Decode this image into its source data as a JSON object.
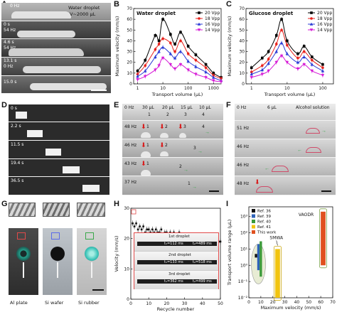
{
  "panels": {
    "A": {
      "label": "A",
      "title_line1": "Water droplet",
      "title_line2": "V~2000 μL",
      "strips": [
        {
          "freq": "0 Hz",
          "time": ""
        },
        {
          "freq": "54 Hz",
          "time": "0 s"
        },
        {
          "freq": "54 Hz",
          "time": "4.6 s"
        },
        {
          "freq": "0 Hz",
          "time": "13.1 s"
        },
        {
          "freq": "",
          "time": "15.0 s"
        }
      ]
    },
    "B": {
      "label": "B"
    },
    "C": {
      "label": "C"
    },
    "D": {
      "label": "D",
      "times": [
        "0 s",
        "2.2 s",
        "11.5 s",
        "19.4 s",
        "36.5 s"
      ]
    },
    "E": {
      "label": "E",
      "head_freq": "0 Hz",
      "volumes": [
        "30 μL",
        "20 μL",
        "15 μL",
        "10 μL"
      ],
      "rows": [
        {
          "freq": "48 Hz",
          "marks": [
            "1",
            "2",
            "3",
            "4"
          ]
        },
        {
          "freq": "46 Hz",
          "marks": [
            "1",
            "2",
            "3"
          ]
        },
        {
          "freq": "43 Hz",
          "marks": [
            "1",
            "2"
          ]
        },
        {
          "freq": "37 Hz",
          "marks": [
            "1"
          ]
        }
      ]
    },
    "F": {
      "label": "F",
      "head_freq": "0 Hz",
      "volume": "6 μL",
      "solution": "Alcohol solution",
      "freqs": [
        "51 Hz",
        "46 Hz",
        "46 Hz",
        "48 Hz"
      ]
    },
    "G": {
      "label": "G",
      "substrates": [
        "Al plate",
        "Si wafer",
        "Si rubber"
      ]
    },
    "H": {
      "label": "H",
      "droplets": [
        {
          "name": "1st droplet",
          "t1": "t₁=112 ms",
          "t2": "t₂=489 ms"
        },
        {
          "name": "2nd droplet",
          "t1": "t₁=133 ms",
          "t2": "t₂=518 ms"
        },
        {
          "name": "3rd droplet",
          "t1": "t₁=362 ms",
          "t2": "t₂=499 ms"
        }
      ]
    },
    "I": {
      "label": "I",
      "annot_smwa": "SMWA",
      "annot_vaodr": "VAODR"
    }
  },
  "chart_data": [
    {
      "panel": "B",
      "type": "line",
      "title": "Water droplet",
      "xlabel": "Transport volume (μL)",
      "ylabel": "Maximum velocity (mm/s)",
      "xscale": "log",
      "xlim": [
        0.7,
        2000
      ],
      "ylim": [
        0,
        70
      ],
      "xticks": [
        1,
        10,
        100,
        1000
      ],
      "yticks": [
        0,
        10,
        20,
        30,
        40,
        50,
        60,
        70
      ],
      "legend_position": "top-right",
      "x": [
        1,
        2,
        5,
        7,
        10,
        20,
        30,
        50,
        100,
        200,
        500,
        1000,
        2000
      ],
      "series": [
        {
          "name": "20 Vpp",
          "color": "#000000",
          "marker": "square",
          "values": [
            12,
            22,
            45,
            40,
            60,
            46,
            37,
            48,
            35,
            27,
            18,
            10,
            6
          ]
        },
        {
          "name": "18 Vpp",
          "color": "#e8221c",
          "marker": "circle",
          "values": [
            9,
            17,
            32,
            37,
            42,
            38,
            30,
            40,
            28,
            22,
            15,
            8,
            5
          ]
        },
        {
          "name": "16 Vpp",
          "color": "#2b3bd6",
          "marker": "triangle-up",
          "values": [
            7,
            12,
            25,
            30,
            34,
            28,
            24,
            30,
            21,
            16,
            11,
            6,
            3
          ]
        },
        {
          "name": "14 Vpp",
          "color": "#d61ad6",
          "marker": "triangle-down",
          "values": [
            4,
            7,
            13,
            17,
            24,
            18,
            14,
            18,
            13,
            9,
            6,
            3,
            2
          ]
        }
      ]
    },
    {
      "panel": "C",
      "type": "line",
      "title": "Glucose droplet",
      "xlabel": "Transport volume (μL)",
      "ylabel": "Maximum velocity (mm/s)",
      "xscale": "log",
      "xlim": [
        0.7,
        200
      ],
      "ylim": [
        0,
        70
      ],
      "xticks": [
        1,
        10,
        100
      ],
      "yticks": [
        0,
        10,
        20,
        30,
        40,
        50,
        60,
        70
      ],
      "legend_position": "top-right",
      "x": [
        1,
        2,
        3,
        5,
        7,
        10,
        20,
        30,
        50,
        100
      ],
      "series": [
        {
          "name": "20 Vpp",
          "color": "#000000",
          "marker": "square",
          "values": [
            15,
            24,
            30,
            45,
            60,
            40,
            28,
            35,
            25,
            18
          ]
        },
        {
          "name": "18 Vpp",
          "color": "#e8221c",
          "marker": "circle",
          "values": [
            11,
            17,
            23,
            37,
            50,
            36,
            24,
            30,
            22,
            15
          ]
        },
        {
          "name": "16 Vpp",
          "color": "#2b3bd6",
          "marker": "triangle-up",
          "values": [
            9,
            13,
            19,
            30,
            38,
            28,
            20,
            25,
            18,
            12
          ]
        },
        {
          "name": "14 Vpp",
          "color": "#d61ad6",
          "marker": "triangle-down",
          "values": [
            6,
            9,
            12,
            20,
            26,
            20,
            14,
            18,
            12,
            8
          ]
        }
      ]
    },
    {
      "panel": "H",
      "type": "scatter",
      "xlabel": "Recycle number",
      "ylabel": "Velocity (mm/s)",
      "xlim": [
        0,
        50
      ],
      "ylim": [
        0,
        30
      ],
      "xticks": [
        0,
        10,
        20,
        30,
        40,
        50
      ],
      "yticks": [
        0,
        10,
        20,
        30
      ],
      "x": [
        1,
        2,
        3,
        4,
        5,
        6,
        7,
        8,
        9,
        10,
        11,
        12,
        13,
        14,
        15,
        16,
        17,
        18,
        19,
        20,
        21,
        22,
        23,
        24,
        25,
        26,
        27,
        28,
        29,
        30,
        31,
        32,
        33,
        34,
        35,
        36,
        37,
        38,
        39,
        40,
        41,
        42,
        43,
        44,
        45,
        46,
        47,
        48,
        49,
        50
      ],
      "values": [
        25,
        24,
        25,
        23,
        24,
        23,
        24,
        22,
        23,
        23,
        22,
        23,
        22,
        23,
        22,
        22,
        23,
        21,
        22,
        22,
        21,
        22,
        21,
        22,
        21,
        21,
        22,
        20,
        21,
        21,
        20,
        21,
        20,
        21,
        20,
        20,
        21,
        20,
        19,
        20,
        20,
        19,
        20,
        19,
        20,
        19,
        19,
        20,
        19,
        19
      ]
    },
    {
      "panel": "I",
      "type": "bar",
      "xlabel": "Maximum velocity (mm/s)",
      "ylabel": "Transport volume range (μL)",
      "yscale": "log",
      "xlim": [
        0,
        70
      ],
      "xticks": [
        0,
        10,
        20,
        30,
        40,
        50,
        60,
        70
      ],
      "yticks": [
        "10⁻²",
        "10⁻¹",
        "10⁰",
        "10¹",
        "10²",
        "10³"
      ],
      "legend_position": "top-left",
      "series": [
        {
          "name": "Ref. 36",
          "color": "#111111",
          "x": [
            5,
            7
          ],
          "range": [
            3,
            5
          ]
        },
        {
          "name": "Ref. 39",
          "color": "#2f63b8",
          "x": [
            7,
            9
          ],
          "range": [
            0.5,
            20
          ]
        },
        {
          "name": "Ref. 40",
          "color": "#3b9a3a",
          "x": [
            9,
            11
          ],
          "range": [
            0.2,
            30
          ]
        },
        {
          "name": "Ref. 41",
          "color": "#f1c40f",
          "x": [
            22,
            26
          ],
          "range": [
            0.01,
            10
          ]
        },
        {
          "name": "This work",
          "color": "#e0501f",
          "x": [
            60,
            64
          ],
          "range": [
            1,
            2000
          ]
        }
      ]
    }
  ]
}
